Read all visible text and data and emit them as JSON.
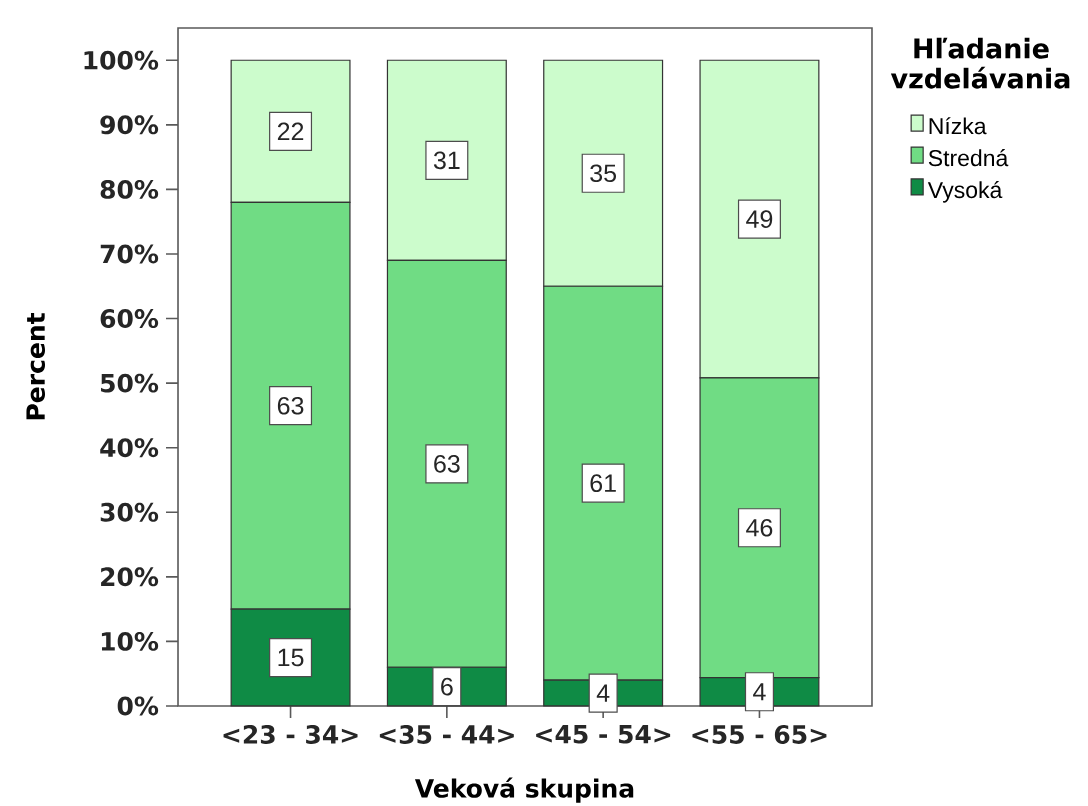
{
  "chart_data": {
    "type": "bar",
    "stacked": true,
    "xlabel": "Veková skupina",
    "ylabel": "Percent",
    "legend_title": "Hľadanie vzdelávania",
    "legend": "right",
    "categories": [
      "<23 - 34>",
      "<35 - 44>",
      "<45 - 54>",
      "<55 - 65>"
    ],
    "series": [
      {
        "name": "Vysoká",
        "color": "#0f8b45",
        "values": [
          15,
          6,
          4,
          4.4
        ],
        "value_labels": [
          "15",
          "6",
          "4",
          "4"
        ]
      },
      {
        "name": "Stredná",
        "color": "#70dc84",
        "values": [
          63,
          63,
          61,
          46.4
        ],
        "value_labels": [
          "63",
          "63",
          "61",
          "46"
        ]
      },
      {
        "name": "Nízka",
        "color": "#ccfccc",
        "values": [
          22,
          31,
          35,
          49.2
        ],
        "value_labels": [
          "22",
          "31",
          "35",
          "49"
        ]
      }
    ],
    "ylim": [
      0,
      105
    ],
    "yticks": [
      {
        "value": 0,
        "label": "0%"
      },
      {
        "value": 10,
        "label": "10%"
      },
      {
        "value": 20,
        "label": "20%"
      },
      {
        "value": 30,
        "label": "30%"
      },
      {
        "value": 40,
        "label": "40%"
      },
      {
        "value": 50,
        "label": "50%"
      },
      {
        "value": 60,
        "label": "60%"
      },
      {
        "value": 70,
        "label": "70%"
      },
      {
        "value": 80,
        "label": "80%"
      },
      {
        "value": 90,
        "label": "90%"
      },
      {
        "value": 100,
        "label": "100%"
      }
    ]
  }
}
